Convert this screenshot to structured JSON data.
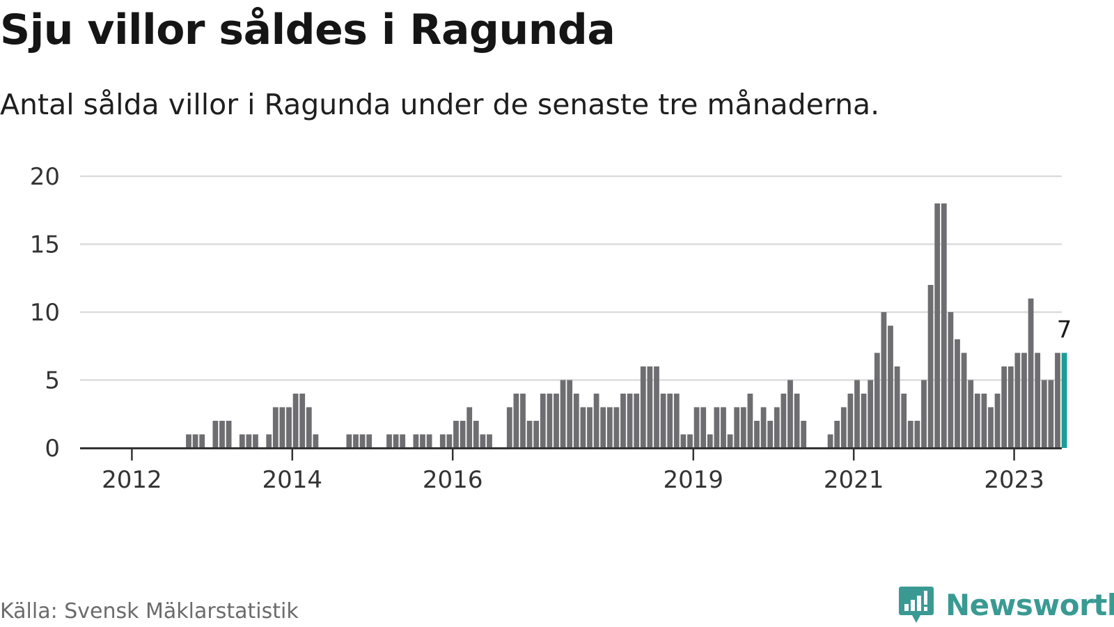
{
  "header": {
    "title": "Sju villor såldes i Ragunda",
    "subtitle": "Antal sålda villor i Ragunda under de senaste tre månaderna."
  },
  "footer": {
    "source": "Källa: Svensk Mäklarstatistik",
    "brand": "Newsworthy",
    "brand_icon": "chart-bars-icon"
  },
  "colors": {
    "bar": "#6e6e72",
    "highlight": "#1a9e96",
    "grid": "#dcdcdc",
    "axis": "#333333",
    "brand": "#3a9a93"
  },
  "chart_data": {
    "type": "bar",
    "title": "Sju villor såldes i Ragunda",
    "subtitle": "Antal sålda villor i Ragunda under de senaste tre månaderna.",
    "ylim": [
      0,
      20
    ],
    "yticks": [
      0,
      5,
      10,
      15,
      20
    ],
    "grid": true,
    "xtick_labels": [
      {
        "label": "2012",
        "index": 1
      },
      {
        "label": "2014",
        "index": 25
      },
      {
        "label": "2016",
        "index": 49
      },
      {
        "label": "2019",
        "index": 85
      },
      {
        "label": "2021",
        "index": 109
      },
      {
        "label": "2023",
        "index": 133
      }
    ],
    "values": [
      0,
      0,
      0,
      0,
      0,
      0,
      0,
      0,
      0,
      0,
      1,
      1,
      1,
      0,
      2,
      2,
      2,
      0,
      1,
      1,
      1,
      0,
      1,
      3,
      3,
      3,
      4,
      4,
      3,
      1,
      0,
      0,
      0,
      0,
      1,
      1,
      1,
      1,
      0,
      0,
      1,
      1,
      1,
      0,
      1,
      1,
      1,
      0,
      1,
      1,
      2,
      2,
      3,
      2,
      1,
      1,
      0,
      0,
      3,
      4,
      4,
      2,
      2,
      4,
      4,
      4,
      5,
      5,
      4,
      3,
      3,
      4,
      3,
      3,
      3,
      4,
      4,
      4,
      6,
      6,
      6,
      4,
      4,
      4,
      1,
      1,
      3,
      3,
      1,
      3,
      3,
      1,
      3,
      3,
      4,
      2,
      3,
      2,
      3,
      4,
      5,
      4,
      2,
      0,
      0,
      0,
      1,
      2,
      3,
      4,
      5,
      4,
      5,
      7,
      10,
      9,
      6,
      4,
      2,
      2,
      5,
      12,
      18,
      18,
      10,
      8,
      7,
      5,
      4,
      4,
      3,
      4,
      6,
      6,
      7,
      7,
      11,
      7,
      5,
      5,
      7,
      7
    ],
    "highlight_index": 141,
    "highlight_label": "7"
  }
}
